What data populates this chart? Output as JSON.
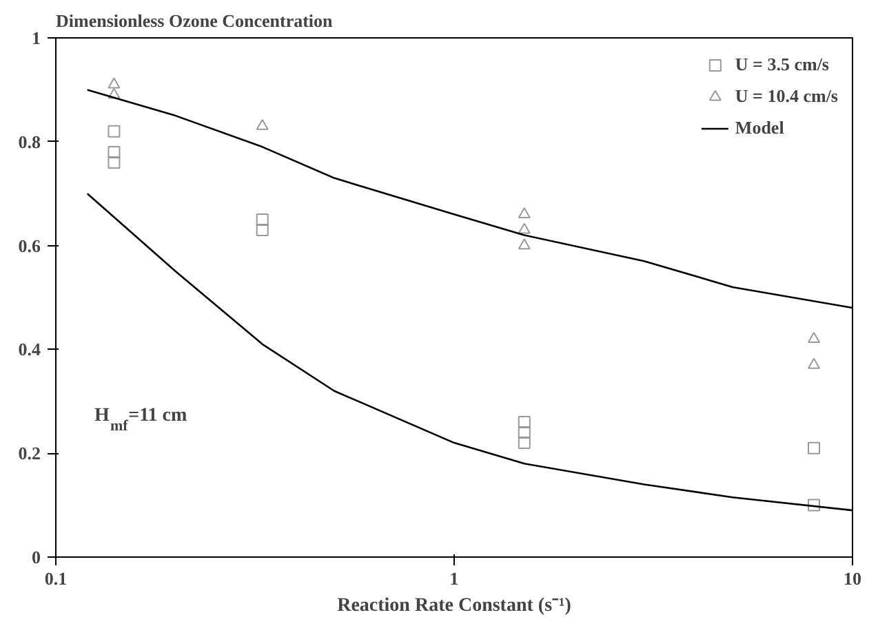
{
  "chart_data": {
    "type": "line",
    "title": "Dimensionless Ozone Concentration",
    "xlabel": "Reaction Rate Constant (s⁻¹)",
    "log": "x",
    "xlim": [
      0.1,
      10
    ],
    "xticks": [
      0.1,
      1,
      10
    ],
    "ylim": [
      0,
      1
    ],
    "yticks": [
      0,
      0.2,
      0.4,
      0.6,
      0.8,
      1
    ],
    "grid": false,
    "legend": "top right",
    "annotations": [
      "H$_{mf}$=11 cm"
    ],
    "series": [
      {
        "name": "U = 3.5 cm/s",
        "type": "scatter",
        "marker": "square",
        "color": "#999999",
        "x": [
          0.14,
          0.14,
          0.14,
          0.33,
          0.33,
          1.5,
          1.5,
          1.5,
          8,
          8
        ],
        "values": [
          0.82,
          0.78,
          0.76,
          0.65,
          0.63,
          0.26,
          0.24,
          0.22,
          0.21,
          0.1
        ]
      },
      {
        "name": "U = 10.4 cm/s",
        "type": "scatter",
        "marker": "triangle",
        "color": "#999999",
        "x": [
          0.14,
          0.14,
          0.33,
          1.5,
          1.5,
          1.5,
          8,
          8
        ],
        "values": [
          0.91,
          0.89,
          0.83,
          0.66,
          0.63,
          0.6,
          0.42,
          0.37
        ]
      },
      {
        "name": "Model",
        "color": "#000000",
        "x": [
          0.12,
          0.2,
          0.33,
          0.5,
          1,
          1.5,
          3,
          5,
          10
        ],
        "values": [
          0.9,
          0.85,
          0.79,
          0.73,
          0.66,
          0.62,
          0.57,
          0.52,
          0.48
        ]
      },
      {
        "color": "#000000",
        "x": [
          0.12,
          0.2,
          0.33,
          0.5,
          1,
          1.5,
          3,
          5,
          10
        ],
        "values": [
          0.7,
          0.55,
          0.41,
          0.32,
          0.22,
          0.18,
          0.14,
          0.115,
          0.09
        ]
      }
    ]
  }
}
